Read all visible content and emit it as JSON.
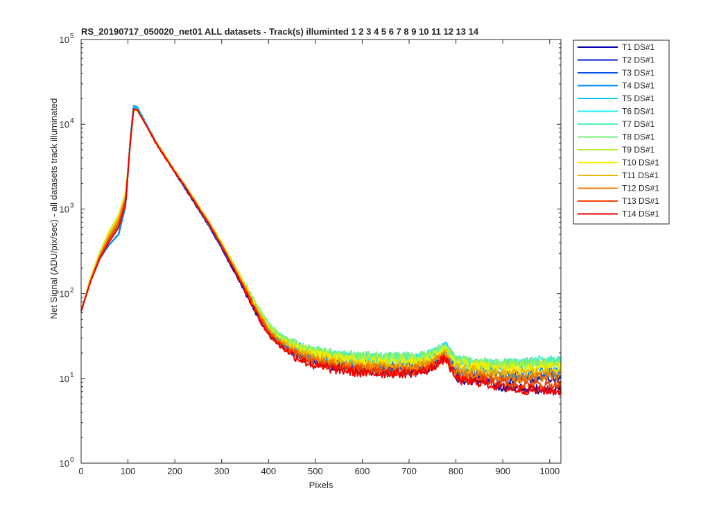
{
  "chart_data": {
    "type": "line",
    "title": "RS_20190717_050020_net01 ALL datasets - Track(s) illuminted  1    2    3    4    5    6    7    8    9   10   11   12   13   14",
    "xlabel": "Pixels",
    "ylabel": "Net Signal (ADU/pix/sec) - all datasets track illuminated",
    "xlim": [
      0,
      1024
    ],
    "ylim": [
      1,
      100000
    ],
    "yscale": "log",
    "grid": false,
    "legend_position": "outside-top-right",
    "x_ticks": [
      "0",
      "100",
      "200",
      "300",
      "400",
      "500",
      "600",
      "700",
      "800",
      "900",
      "1000"
    ],
    "y_ticks": [
      {
        "base": "10",
        "exp": "0"
      },
      {
        "base": "10",
        "exp": "1"
      },
      {
        "base": "10",
        "exp": "2"
      },
      {
        "base": "10",
        "exp": "3"
      },
      {
        "base": "10",
        "exp": "4"
      },
      {
        "base": "10",
        "exp": "5"
      }
    ],
    "x": [
      0,
      20,
      40,
      60,
      80,
      95,
      105,
      112,
      120,
      140,
      160,
      180,
      200,
      225,
      250,
      275,
      300,
      325,
      350,
      375,
      400,
      425,
      450,
      475,
      500,
      550,
      600,
      650,
      700,
      740,
      765,
      778,
      790,
      800,
      810,
      830,
      850,
      870,
      890,
      920,
      950,
      1000,
      1024
    ],
    "series": [
      {
        "name": "T1 DS#1",
        "color": "#0000b0",
        "values": [
          62,
          140,
          260,
          380,
          500,
          1100,
          6500,
          15500,
          15000,
          9500,
          6000,
          4000,
          2700,
          1650,
          1000,
          600,
          340,
          190,
          104,
          56,
          34,
          25,
          20,
          17.5,
          15.5,
          13.5,
          12.5,
          12,
          12,
          13,
          16,
          18,
          14,
          10.5,
          9.5,
          9.5,
          9.5,
          9,
          8,
          7.8,
          7.5,
          7.5,
          7.5
        ]
      },
      {
        "name": "T2 DS#1",
        "color": "#0019d6",
        "values": [
          62,
          140,
          260,
          380,
          500,
          1100,
          6500,
          15500,
          15000,
          9500,
          6000,
          4000,
          2700,
          1650,
          1000,
          600,
          345,
          195,
          108,
          58,
          35,
          26,
          21,
          18.5,
          16.5,
          14.5,
          13.5,
          13,
          13,
          14,
          17,
          19.5,
          15,
          12,
          11,
          10.5,
          10.5,
          10,
          9.5,
          9.5,
          9.5,
          10,
          10
        ]
      },
      {
        "name": "T3 DS#1",
        "color": "#0050f0",
        "values": [
          62,
          140,
          260,
          380,
          500,
          1100,
          6800,
          16000,
          15500,
          9700,
          6100,
          4100,
          2750,
          1700,
          1020,
          610,
          350,
          200,
          112,
          61,
          37,
          27.5,
          22,
          19.5,
          17.5,
          15.5,
          14.5,
          14,
          14,
          15,
          18,
          21,
          16,
          13,
          12,
          11.5,
          11.5,
          11,
          10.5,
          10.5,
          10.5,
          11,
          11
        ]
      },
      {
        "name": "T4 DS#1",
        "color": "#008cff",
        "values": [
          62,
          140,
          260,
          380,
          500,
          1100,
          7000,
          16500,
          16000,
          10000,
          6200,
          4150,
          2800,
          1720,
          1040,
          625,
          358,
          206,
          116,
          64,
          39,
          29,
          23.5,
          20.5,
          18.5,
          16.5,
          15.5,
          15,
          15,
          16,
          19,
          22,
          17,
          14,
          13,
          12.5,
          12.5,
          12,
          11.5,
          11.5,
          11.5,
          12,
          12
        ]
      },
      {
        "name": "T5 DS#1",
        "color": "#00c8ff",
        "values": [
          62,
          145,
          270,
          420,
          620,
          1200,
          6800,
          16000,
          15500,
          9800,
          6200,
          4150,
          2800,
          1740,
          1060,
          640,
          370,
          213,
          120,
          67,
          41,
          30.5,
          25,
          22,
          20,
          18,
          17,
          17,
          17,
          18,
          21,
          24.5,
          19,
          16,
          15,
          14.5,
          14.5,
          14,
          14,
          14.5,
          15,
          15.5,
          16
        ]
      },
      {
        "name": "T6 DS#1",
        "color": "#1ef0f0",
        "values": [
          62,
          148,
          280,
          450,
          680,
          1300,
          6500,
          15500,
          15000,
          9700,
          6200,
          4150,
          2800,
          1750,
          1070,
          650,
          378,
          218,
          124,
          69,
          42,
          31.5,
          26,
          22.5,
          20.5,
          18.5,
          17.5,
          17.5,
          17.5,
          18.5,
          21.5,
          25,
          19.5,
          16.5,
          15.5,
          15,
          15,
          14.5,
          14.5,
          15,
          15.5,
          16,
          16
        ]
      },
      {
        "name": "T7 DS#1",
        "color": "#50f0c0",
        "values": [
          62,
          150,
          290,
          480,
          740,
          1400,
          6300,
          15000,
          14800,
          9600,
          6150,
          4150,
          2800,
          1760,
          1080,
          660,
          385,
          223,
          127,
          71,
          43,
          32,
          26.5,
          23,
          21,
          19,
          18,
          18,
          18,
          19,
          22,
          25.5,
          20,
          17,
          16,
          15.5,
          15.5,
          15,
          15,
          15.5,
          16,
          16.5,
          16.5
        ]
      },
      {
        "name": "T8 DS#1",
        "color": "#78f078",
        "values": [
          62,
          155,
          300,
          520,
          800,
          1500,
          6000,
          14800,
          14700,
          9600,
          6200,
          4200,
          2850,
          1780,
          1100,
          675,
          395,
          228,
          130,
          73,
          44,
          32.5,
          27,
          23.5,
          21.5,
          19.5,
          18.5,
          18,
          18,
          19,
          22,
          24.5,
          19.5,
          17,
          16.5,
          16,
          16,
          15.5,
          15,
          15,
          15,
          15.5,
          15.5
        ]
      },
      {
        "name": "T9 DS#1",
        "color": "#b4f03c",
        "values": [
          62,
          155,
          310,
          550,
          850,
          1550,
          5800,
          14500,
          14500,
          9500,
          6200,
          4200,
          2850,
          1800,
          1110,
          685,
          400,
          230,
          130,
          72,
          43,
          31.5,
          26,
          22.5,
          20.5,
          18.5,
          17.5,
          17,
          17,
          18,
          21,
          23,
          18,
          16,
          15.5,
          15,
          15,
          14.5,
          14,
          14,
          14,
          14.5,
          14.5
        ]
      },
      {
        "name": "T10 DS#1",
        "color": "#f0f000",
        "values": [
          62,
          150,
          300,
          530,
          820,
          1500,
          5800,
          14500,
          14500,
          9500,
          6150,
          4150,
          2800,
          1780,
          1095,
          670,
          390,
          222,
          124,
          68,
          40,
          29.5,
          24,
          21,
          19,
          17,
          16,
          15.5,
          15.5,
          16.5,
          19.5,
          21.5,
          17,
          15,
          14.5,
          14,
          14,
          13.5,
          13,
          13,
          13,
          13.5,
          13.5
        ]
      },
      {
        "name": "T11 DS#1",
        "color": "#f0b400",
        "values": [
          62,
          145,
          290,
          500,
          780,
          1450,
          5900,
          14700,
          14600,
          9500,
          6100,
          4100,
          2780,
          1760,
          1080,
          660,
          382,
          216,
          120,
          65,
          38,
          28,
          22.5,
          19.5,
          17.5,
          15.5,
          14.5,
          14,
          14,
          15,
          18,
          20,
          15.5,
          13.5,
          13,
          12.5,
          12.5,
          12,
          11.5,
          11.5,
          11.5,
          12,
          12
        ]
      },
      {
        "name": "T12 DS#1",
        "color": "#f07800",
        "values": [
          62,
          142,
          280,
          470,
          720,
          1350,
          6000,
          14800,
          14700,
          9500,
          6050,
          4080,
          2760,
          1740,
          1065,
          650,
          375,
          210,
          116,
          62,
          36,
          26.5,
          21,
          18,
          16,
          14.5,
          13.5,
          13,
          13,
          14,
          17,
          19,
          14.5,
          12,
          11.5,
          11,
          11,
          10.5,
          10,
          10,
          10,
          10.5,
          10.5
        ]
      },
      {
        "name": "T13 DS#1",
        "color": "#f04000",
        "values": [
          62,
          140,
          270,
          440,
          660,
          1250,
          6200,
          15000,
          14800,
          9500,
          6000,
          4050,
          2740,
          1720,
          1050,
          640,
          368,
          205,
          112,
          60,
          34.5,
          25,
          20,
          17,
          15,
          13.5,
          12.5,
          12,
          12,
          13,
          16,
          18,
          13.5,
          11,
          10.5,
          10,
          10,
          9.5,
          9,
          8.5,
          8.5,
          8.5,
          8.5
        ]
      },
      {
        "name": "T14 DS#1",
        "color": "#f00000",
        "values": [
          62,
          138,
          260,
          410,
          600,
          1150,
          6300,
          15200,
          14900,
          9400,
          5950,
          4000,
          2720,
          1700,
          1035,
          630,
          360,
          200,
          108,
          57,
          33,
          24,
          19,
          16,
          14,
          12.5,
          11.5,
          11.5,
          11.5,
          12.5,
          15.5,
          17.5,
          12.5,
          10,
          9.5,
          9,
          9,
          8.5,
          8,
          7.5,
          7.3,
          7.2,
          7
        ]
      }
    ]
  }
}
